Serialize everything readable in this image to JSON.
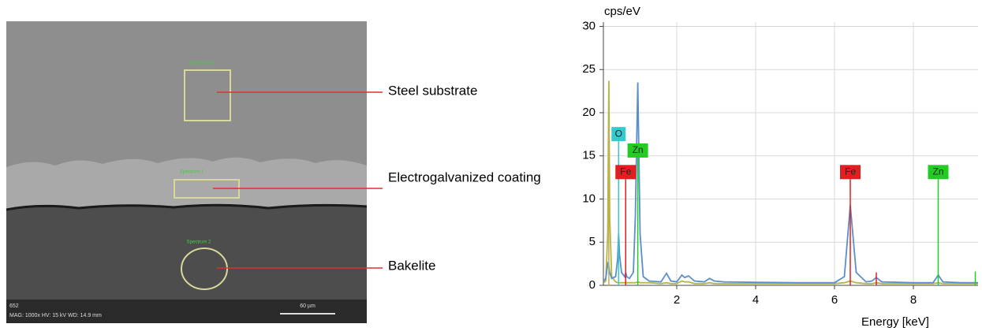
{
  "sem_image": {
    "labels": [
      "Steel substrate",
      "Electrogalvanized coating",
      "Bakelite"
    ],
    "spectrum_labels": [
      "Spectrum 3",
      "Spectrum 1",
      "Spectrum 2"
    ],
    "info_id": "652",
    "info": "MAG: 1000x   HV: 15 kV   WD: 14.9 mm",
    "scale_bar": "60 µm"
  },
  "chart_data": {
    "type": "line",
    "y_label": "cps/eV",
    "x_label": "Energy [keV]",
    "xlim": [
      0.14,
      9.64
    ],
    "ylim": [
      0,
      30.5
    ],
    "xticks": [
      2,
      4,
      6,
      8
    ],
    "yticks": [
      0,
      5,
      10,
      15,
      20,
      25,
      30
    ],
    "grid": true,
    "x": [
      0.15,
      0.2,
      0.25,
      0.277,
      0.3,
      0.35,
      0.45,
      0.5,
      0.525,
      0.55,
      0.6,
      0.68,
      0.705,
      0.73,
      0.8,
      0.9,
      0.95,
      1.012,
      1.07,
      1.15,
      1.3,
      1.6,
      1.74,
      1.85,
      2.0,
      2.13,
      2.2,
      2.3,
      2.45,
      2.7,
      2.83,
      2.95,
      3.2,
      4.0,
      5.0,
      6.0,
      6.25,
      6.4,
      6.55,
      6.8,
      6.95,
      7.06,
      7.2,
      8.0,
      8.5,
      8.63,
      8.75,
      9.2,
      9.64
    ],
    "series": [
      {
        "color": "#b8b44a",
        "values": [
          0.3,
          0.5,
          6,
          23.7,
          8,
          1,
          0.4,
          0.3,
          0.3,
          0.3,
          0.3,
          0.3,
          0.3,
          0.3,
          0.3,
          0.3,
          0.3,
          0.4,
          0.3,
          0.3,
          0.3,
          0.2,
          0.3,
          0.2,
          0.2,
          0.5,
          0.4,
          0.4,
          0.2,
          0.2,
          0.3,
          0.2,
          0.2,
          0.2,
          0.2,
          0.2,
          0.3,
          0.5,
          0.3,
          0.2,
          0.2,
          0.3,
          0.2,
          0.2,
          0.2,
          0.3,
          0.2,
          0.2,
          0.2
        ]
      },
      {
        "color": "#5b8fc9",
        "values": [
          0.5,
          0.8,
          2.5,
          2.2,
          1.5,
          0.8,
          1.0,
          3.0,
          6.0,
          3.5,
          1.5,
          1.0,
          1.5,
          1.0,
          0.8,
          1.5,
          8,
          23.5,
          6,
          1.0,
          0.5,
          0.4,
          1.4,
          0.5,
          0.4,
          1.2,
          0.9,
          1.1,
          0.5,
          0.4,
          0.8,
          0.5,
          0.4,
          0.35,
          0.3,
          0.3,
          1.0,
          9.3,
          1.5,
          0.4,
          0.5,
          0.9,
          0.4,
          0.3,
          0.3,
          1.2,
          0.4,
          0.3,
          0.3
        ]
      }
    ],
    "markers": [
      {
        "x": 0.277,
        "height": 23.7,
        "color": "#b8b44a"
      },
      {
        "x": 0.525,
        "height": 16.7,
        "color": "#33cccc",
        "label": "O"
      },
      {
        "x": 0.705,
        "height": 12.3,
        "color": "#e02020",
        "label": "Fe"
      },
      {
        "x": 1.012,
        "height": 14.8,
        "color": "#22cc22",
        "label": "Zn"
      },
      {
        "x": 6.4,
        "height": 12.3,
        "color": "#e02020",
        "label": "Fe"
      },
      {
        "x": 7.06,
        "height": 1.5,
        "color": "#e02020"
      },
      {
        "x": 8.63,
        "height": 12.3,
        "color": "#22cc22",
        "label": "Zn"
      },
      {
        "x": 9.57,
        "height": 1.6,
        "color": "#22cc22"
      }
    ]
  }
}
